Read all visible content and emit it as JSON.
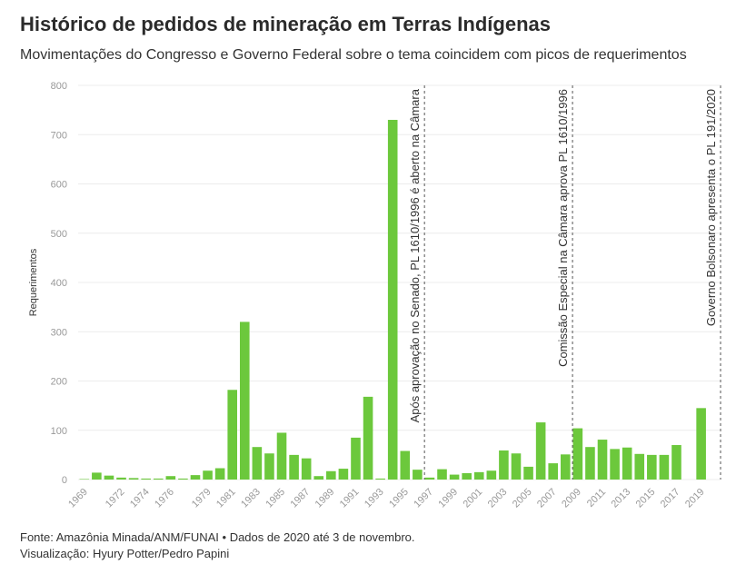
{
  "title": "Histórico de pedidos de mineração em Terras Indígenas",
  "subtitle": "Movimentações do Congresso e Governo Federal sobre o tema coincidem com picos de requerimentos",
  "footer": {
    "source": "Fonte: Amazônia Minada/ANM/FUNAI • Dados de 2020 até 3 de novembro.",
    "credits": "Visualização: Hyury Potter/Pedro Papini"
  },
  "colors": {
    "bar": "#6cc83c",
    "grid": "#ececec",
    "annotation_line": "#555555"
  },
  "chart_data": {
    "type": "bar",
    "title": "Histórico de pedidos de mineração em Terras Indígenas",
    "xlabel": "",
    "ylabel": "Requerimentos",
    "ylim": [
      0,
      800
    ],
    "yticks": [
      0,
      100,
      200,
      300,
      400,
      500,
      600,
      700,
      800
    ],
    "grid": true,
    "categories": [
      "1969",
      "1970",
      "1971",
      "1972",
      "1973",
      "1974",
      "1975",
      "1976",
      "1977",
      "1978",
      "1979",
      "1980",
      "1981",
      "1982",
      "1983",
      "1984",
      "1985",
      "1986",
      "1987",
      "1988",
      "1989",
      "1990",
      "1991",
      "1992",
      "1993",
      "1994",
      "1995",
      "1996",
      "1997",
      "1998",
      "1999",
      "2000",
      "2001",
      "2002",
      "2003",
      "2004",
      "2005",
      "2006",
      "2007",
      "2008",
      "2009",
      "2010",
      "2011",
      "2012",
      "2013",
      "2014",
      "2015",
      "2016",
      "2017",
      "2018",
      "2019",
      "2020"
    ],
    "values": [
      1,
      14,
      8,
      4,
      3,
      2,
      2,
      7,
      2,
      9,
      18,
      23,
      182,
      320,
      66,
      53,
      95,
      50,
      43,
      7,
      17,
      22,
      85,
      168,
      2,
      730,
      58,
      20,
      4,
      21,
      10,
      13,
      15,
      18,
      59,
      53,
      26,
      116,
      33,
      51,
      104,
      66,
      81,
      62,
      65,
      52,
      50,
      50,
      70,
      0,
      145,
      0
    ],
    "values_note_skip": true,
    "xtick_labels": [
      "1969",
      "1972",
      "1974",
      "1976",
      "1979",
      "1981",
      "1983",
      "1985",
      "1987",
      "1989",
      "1991",
      "1993",
      "1995",
      "1997",
      "1999",
      "2001",
      "2003",
      "2005",
      "2007",
      "2009",
      "2011",
      "2013",
      "2015",
      "2017",
      "2019"
    ],
    "annotations": [
      {
        "year": "1996",
        "text": "Após aprovação no Senado, PL 1610/1996 é aberto na Câmara"
      },
      {
        "year": "2008",
        "text": "Comissão Especial na Câmara aprova PL 1610/1996"
      },
      {
        "year": "2020",
        "text": "Governo Bolsonaro apresenta o PL 191/2020"
      }
    ]
  }
}
